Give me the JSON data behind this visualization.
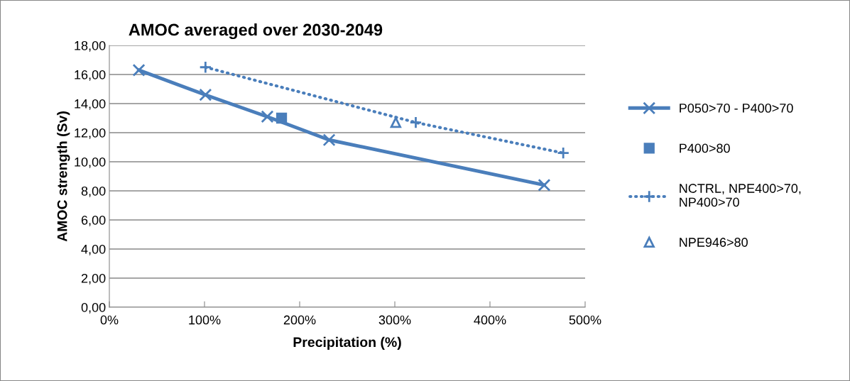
{
  "chart_data": {
    "type": "line",
    "title": "AMOC averaged over 2030-2049",
    "xlabel": "Precipitation (%)",
    "ylabel": "AMOC strength (Sv)",
    "series": [
      {
        "name": "P050>70 - P400>70",
        "color": "#4a7ebb",
        "marker": "cross",
        "line_style": "solid",
        "x": [
          31,
          101,
          166,
          231,
          457
        ],
        "values": [
          16.3,
          14.6,
          13.1,
          11.5,
          8.4
        ]
      },
      {
        "name": "P400>80",
        "color": "#4a7ebb",
        "type": "scatter",
        "marker": "square",
        "x": [
          181
        ],
        "values": [
          13.0
        ]
      },
      {
        "name": "NCTRL, NPE400>70, NP400>70",
        "color": "#4a7ebb",
        "marker": "plus",
        "line_style": "dotted",
        "x": [
          101,
          322,
          477
        ],
        "values": [
          16.5,
          12.7,
          10.6
        ]
      },
      {
        "name": "NPE946>80",
        "color": "#4a7ebb",
        "type": "scatter",
        "marker": "triangle",
        "x": [
          301
        ],
        "values": [
          12.7
        ]
      }
    ],
    "xlim": [
      0,
      500
    ],
    "xticks": [
      {
        "value": 0,
        "label": "0%"
      },
      {
        "value": 100,
        "label": "100%"
      },
      {
        "value": 200,
        "label": "200%"
      },
      {
        "value": 300,
        "label": "300%"
      },
      {
        "value": 400,
        "label": "400%"
      },
      {
        "value": 500,
        "label": "500%"
      }
    ],
    "ylim": [
      0,
      18
    ],
    "yticks": [
      {
        "value": 0,
        "label": "0,00"
      },
      {
        "value": 2,
        "label": "2,00"
      },
      {
        "value": 4,
        "label": "4,00"
      },
      {
        "value": 6,
        "label": "6,00"
      },
      {
        "value": 8,
        "label": "8,00"
      },
      {
        "value": 10,
        "label": "10,00"
      },
      {
        "value": 12,
        "label": "12,00"
      },
      {
        "value": 14,
        "label": "14,00"
      },
      {
        "value": 16,
        "label": "16,00"
      },
      {
        "value": 18,
        "label": "18,00"
      }
    ],
    "grid": "y",
    "legend": "right"
  }
}
